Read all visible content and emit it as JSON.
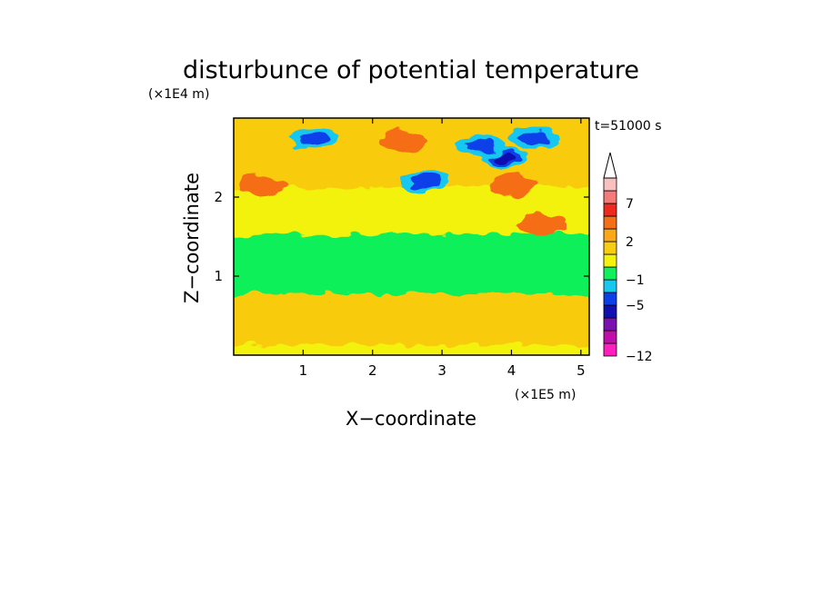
{
  "chart_data": {
    "type": "heatmap",
    "title": "disturbunce of potential temperature",
    "time_label": "t=51000 s",
    "xlabel": "X−coordinate",
    "ylabel": "Z−coordinate",
    "x_unit": "(×1E5 m)",
    "y_unit": "(×1E4 m)",
    "xlim": [
      0,
      5.12
    ],
    "ylim": [
      0,
      3.0
    ],
    "x_ticks": [
      "1",
      "2",
      "3",
      "4",
      "5"
    ],
    "x_tick_values": [
      1,
      2,
      3,
      4,
      5
    ],
    "y_ticks": [
      "1",
      "2"
    ],
    "y_tick_values": [
      1,
      2
    ],
    "colorbar": {
      "levels": [
        -12,
        -11,
        -9,
        -7,
        -5,
        -3,
        -1,
        0,
        1,
        2,
        3,
        5,
        7,
        9,
        11
      ],
      "tick_labels": [
        "−12",
        "−5",
        "−1",
        "2",
        "7"
      ],
      "tick_values": [
        -12,
        -5,
        -1,
        2,
        7
      ],
      "colors": [
        "#ff1fbe",
        "#c00fa8",
        "#7a10b0",
        "#1010b0",
        "#0a40e8",
        "#15c8f0",
        "#11f05a",
        "#f2f20a",
        "#f8cc10",
        "#f8a818",
        "#f56e18",
        "#ec2a20",
        "#f57a7a",
        "#f8c0c0",
        "#ffffff"
      ],
      "extend": "max"
    },
    "zones": [
      {
        "z_range": [
          0.0,
          0.2
        ],
        "value": 0.5
      },
      {
        "z_range": [
          0.2,
          0.85
        ],
        "value": 1.5
      },
      {
        "z_range": [
          0.85,
          1.6
        ],
        "value": -0.5
      },
      {
        "z_range": [
          1.6,
          2.2
        ],
        "value": 0.5
      },
      {
        "z_range": [
          2.2,
          3.0
        ],
        "value": 1.5
      }
    ],
    "features": [
      {
        "x": 3.9,
        "z": 2.5,
        "value": -7
      },
      {
        "x": 3.55,
        "z": 2.65,
        "value": -5
      },
      {
        "x": 4.35,
        "z": 2.75,
        "value": -5
      },
      {
        "x": 2.75,
        "z": 2.2,
        "value": -5
      },
      {
        "x": 1.15,
        "z": 2.75,
        "value": -5
      },
      {
        "x": 4.05,
        "z": 2.15,
        "value": 3
      },
      {
        "x": 2.45,
        "z": 2.7,
        "value": 3
      },
      {
        "x": 4.45,
        "z": 1.65,
        "value": 3
      },
      {
        "x": 0.4,
        "z": 2.15,
        "value": 3
      },
      {
        "x": 0.5,
        "z": 0.6,
        "value": 2
      },
      {
        "x": 3.3,
        "z": 1.35,
        "value": -1
      },
      {
        "x": 3.9,
        "z": 1.02,
        "value": -1
      }
    ]
  }
}
